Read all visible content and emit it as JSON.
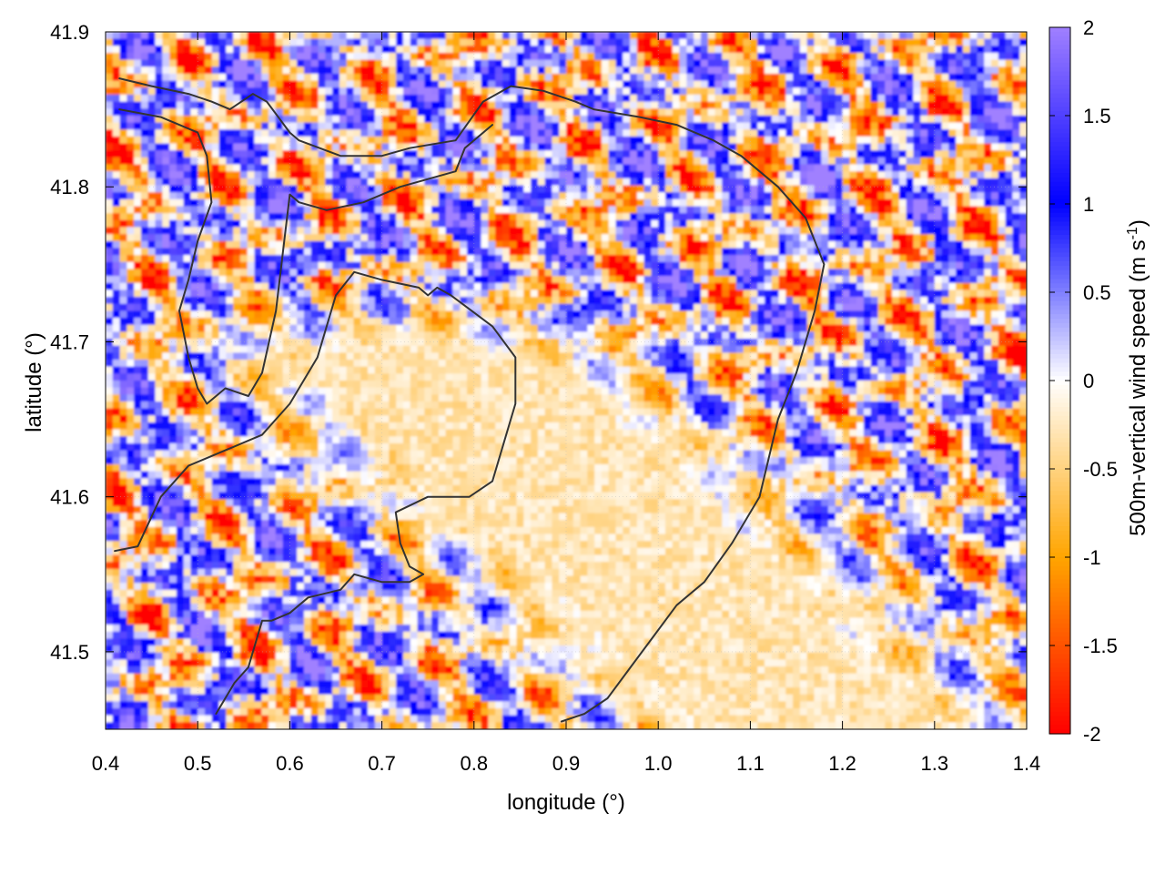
{
  "chart_data": {
    "type": "heatmap",
    "title": "",
    "xlabel": "longitude (°)",
    "ylabel": "latitude (°)",
    "colorbar_label": "500m-vertical wind speed (m s",
    "colorbar_label_sup": "-1",
    "colorbar_label_close": ")",
    "xlim": [
      0.4,
      1.4
    ],
    "ylim": [
      41.45,
      41.9
    ],
    "zlim": [
      -2,
      2
    ],
    "x_ticks": [
      {
        "value": 0.4,
        "label": "0.4"
      },
      {
        "value": 0.5,
        "label": "0.5"
      },
      {
        "value": 0.6,
        "label": "0.6"
      },
      {
        "value": 0.7,
        "label": "0.7"
      },
      {
        "value": 0.8,
        "label": "0.8"
      },
      {
        "value": 0.9,
        "label": "0.9"
      },
      {
        "value": 1.0,
        "label": "1.0"
      },
      {
        "value": 1.1,
        "label": "1.1"
      },
      {
        "value": 1.2,
        "label": "1.2"
      },
      {
        "value": 1.3,
        "label": "1.3"
      },
      {
        "value": 1.4,
        "label": "1.4"
      }
    ],
    "y_ticks": [
      {
        "value": 41.5,
        "label": "41.5"
      },
      {
        "value": 41.6,
        "label": "41.6"
      },
      {
        "value": 41.7,
        "label": "41.7"
      },
      {
        "value": 41.8,
        "label": "41.8"
      },
      {
        "value": 41.9,
        "label": "41.9"
      }
    ],
    "colorbar_ticks": [
      {
        "value": 2,
        "label": "2"
      },
      {
        "value": 1.5,
        "label": "1.5"
      },
      {
        "value": 1,
        "label": "1"
      },
      {
        "value": 0.5,
        "label": "0.5"
      },
      {
        "value": 0,
        "label": "0"
      },
      {
        "value": -0.5,
        "label": "-0.5"
      },
      {
        "value": -1,
        "label": "-1"
      },
      {
        "value": -1.5,
        "label": "-1.5"
      },
      {
        "value": -2,
        "label": "-2"
      }
    ],
    "colormap": [
      {
        "value": -2,
        "color": "#ff0000"
      },
      {
        "value": -1,
        "color": "#ffa500"
      },
      {
        "value": 0,
        "color": "#ffffff"
      },
      {
        "value": 1,
        "color": "#0000ff"
      },
      {
        "value": 2,
        "color": "#a080ff"
      }
    ],
    "grid": true,
    "contour_color": "#333333",
    "contours": [
      [
        [
          0.41,
          41.565
        ],
        [
          0.435,
          41.568
        ],
        [
          0.46,
          41.6
        ],
        [
          0.49,
          41.62
        ],
        [
          0.53,
          41.63
        ],
        [
          0.57,
          41.64
        ],
        [
          0.6,
          41.66
        ],
        [
          0.63,
          41.69
        ],
        [
          0.65,
          41.73
        ],
        [
          0.67,
          41.745
        ],
        [
          0.7,
          41.74
        ],
        [
          0.74,
          41.735
        ],
        [
          0.75,
          41.73
        ],
        [
          0.76,
          41.735
        ],
        [
          0.775,
          41.73
        ],
        [
          0.82,
          41.71
        ],
        [
          0.845,
          41.69
        ],
        [
          0.845,
          41.66
        ],
        [
          0.82,
          41.61
        ],
        [
          0.795,
          41.6
        ],
        [
          0.75,
          41.6
        ],
        [
          0.715,
          41.59
        ],
        [
          0.72,
          41.57
        ],
        [
          0.73,
          41.555
        ],
        [
          0.745,
          41.55
        ],
        [
          0.73,
          41.545
        ],
        [
          0.7,
          41.545
        ],
        [
          0.67,
          41.55
        ],
        [
          0.655,
          41.54
        ],
        [
          0.62,
          41.535
        ],
        [
          0.6,
          41.525
        ],
        [
          0.58,
          41.52
        ],
        [
          0.57,
          41.52
        ],
        [
          0.56,
          41.5
        ],
        [
          0.555,
          41.49
        ],
        [
          0.54,
          41.48
        ],
        [
          0.52,
          41.46
        ]
      ],
      [
        [
          0.415,
          41.87
        ],
        [
          0.45,
          41.865
        ],
        [
          0.49,
          41.86
        ],
        [
          0.515,
          41.855
        ],
        [
          0.535,
          41.85
        ],
        [
          0.56,
          41.86
        ],
        [
          0.575,
          41.855
        ],
        [
          0.6,
          41.835
        ],
        [
          0.61,
          41.83
        ],
        [
          0.655,
          41.82
        ],
        [
          0.7,
          41.82
        ],
        [
          0.73,
          41.825
        ],
        [
          0.78,
          41.83
        ],
        [
          0.81,
          41.855
        ],
        [
          0.84,
          41.865
        ],
        [
          0.875,
          41.862
        ],
        [
          0.91,
          41.855
        ],
        [
          0.93,
          41.85
        ],
        [
          0.98,
          41.845
        ],
        [
          1.02,
          41.84
        ],
        [
          1.06,
          41.83
        ],
        [
          1.09,
          41.82
        ],
        [
          1.13,
          41.8
        ],
        [
          1.16,
          41.78
        ],
        [
          1.18,
          41.75
        ],
        [
          1.17,
          41.72
        ],
        [
          1.15,
          41.68
        ],
        [
          1.13,
          41.65
        ],
        [
          1.11,
          41.6
        ],
        [
          1.08,
          41.57
        ],
        [
          1.05,
          41.545
        ],
        [
          1.02,
          41.53
        ],
        [
          0.995,
          41.51
        ],
        [
          0.97,
          41.49
        ],
        [
          0.945,
          41.47
        ],
        [
          0.92,
          41.46
        ],
        [
          0.895,
          41.455
        ]
      ],
      [
        [
          0.415,
          41.85
        ],
        [
          0.46,
          41.845
        ],
        [
          0.5,
          41.835
        ],
        [
          0.51,
          41.82
        ],
        [
          0.515,
          41.79
        ],
        [
          0.5,
          41.765
        ],
        [
          0.49,
          41.74
        ],
        [
          0.48,
          41.72
        ],
        [
          0.49,
          41.69
        ],
        [
          0.5,
          41.67
        ],
        [
          0.51,
          41.66
        ],
        [
          0.53,
          41.67
        ],
        [
          0.555,
          41.665
        ],
        [
          0.57,
          41.68
        ],
        [
          0.585,
          41.72
        ],
        [
          0.595,
          41.77
        ],
        [
          0.6,
          41.795
        ],
        [
          0.61,
          41.79
        ],
        [
          0.64,
          41.785
        ],
        [
          0.68,
          41.79
        ],
        [
          0.72,
          41.8
        ],
        [
          0.75,
          41.805
        ],
        [
          0.78,
          41.81
        ],
        [
          0.79,
          41.825
        ],
        [
          0.82,
          41.84
        ]
      ]
    ]
  }
}
